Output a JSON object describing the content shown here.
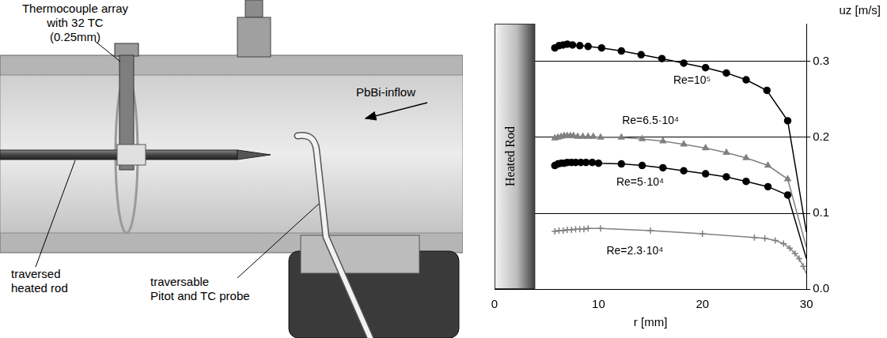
{
  "diagram": {
    "labels": {
      "thermocouple_array": [
        "Thermocouple array",
        "with 32 TC",
        "(0.25mm)"
      ],
      "inflow": "PbBi-inflow",
      "heated_rod": [
        "traversed",
        "heated rod"
      ],
      "probe": [
        "traversable",
        "Pitot and TC probe"
      ]
    }
  },
  "chart_data": {
    "type": "line",
    "x_label": "r [mm]",
    "y_label": "uz [m/s]",
    "xlim": [
      0,
      30
    ],
    "xticks": [
      0,
      10,
      20,
      30
    ],
    "ylim": [
      0,
      0.35
    ],
    "yticks": [
      {
        "value": 0,
        "label": "0.0"
      },
      0.1,
      0.2,
      0.3
    ],
    "grid": true,
    "heated_rod": {
      "label": "Heated Rod",
      "r": [
        0,
        3.9
      ]
    },
    "series": [
      {
        "name": "Re=10⁵",
        "color": "#000000",
        "marker": "circle",
        "line_style": "solid",
        "x": [
          5.8,
          6.2,
          6.6,
          7.0,
          7.5,
          8.2,
          9.0,
          10.3,
          12.2,
          14.1,
          16.1,
          18.2,
          20.3,
          22.3,
          24.2,
          26.2,
          28.2,
          30
        ],
        "values": [
          0.318,
          0.321,
          0.322,
          0.323,
          0.322,
          0.321,
          0.32,
          0.318,
          0.314,
          0.309,
          0.304,
          0.298,
          0.292,
          0.285,
          0.276,
          0.262,
          0.222,
          0.075
        ],
        "label_x": 19,
        "label_y": 0.275
      },
      {
        "name": "Re=6.5·10⁴",
        "color": "#808080",
        "marker": "triangle",
        "line_style": "solid",
        "x": [
          5.8,
          6.1,
          6.4,
          6.7,
          7.0,
          7.3,
          7.6,
          8.0,
          8.5,
          9.0,
          9.5,
          10.2,
          12.2,
          14.2,
          16.2,
          18.2,
          20.3,
          22.3,
          24.2,
          26.3,
          28.2,
          30
        ],
        "values": [
          0.199,
          0.2,
          0.201,
          0.202,
          0.202,
          0.202,
          0.202,
          0.201,
          0.201,
          0.201,
          0.201,
          0.2,
          0.2,
          0.198,
          0.195,
          0.191,
          0.186,
          0.18,
          0.173,
          0.163,
          0.145,
          0.055
        ],
        "label_x": 15,
        "label_y": 0.222
      },
      {
        "name": "Re=5·10⁴",
        "color": "#000000",
        "marker": "circle",
        "line_style": "solid",
        "x": [
          5.8,
          6.1,
          6.4,
          6.7,
          7.0,
          7.4,
          7.8,
          8.3,
          8.8,
          9.4,
          10.0,
          12.2,
          14.2,
          16.2,
          18.2,
          20.3,
          22.3,
          24.2,
          26.3,
          28.2,
          30
        ],
        "values": [
          0.163,
          0.165,
          0.166,
          0.166,
          0.167,
          0.167,
          0.167,
          0.167,
          0.167,
          0.167,
          0.166,
          0.165,
          0.163,
          0.16,
          0.156,
          0.152,
          0.148,
          0.142,
          0.135,
          0.124,
          0.04
        ],
        "label_x": 14,
        "label_y": 0.14
      },
      {
        "name": "Re=2.3·10⁴",
        "color": "#808080",
        "marker": "plus",
        "line_style": "solid",
        "x": [
          5.8,
          6.2,
          6.6,
          7.0,
          7.4,
          7.8,
          8.2,
          8.6,
          9.0,
          10.2,
          15.0,
          20.0,
          25.0,
          26.0,
          27.0,
          27.8,
          28.4,
          28.9,
          29.3,
          29.7,
          30
        ],
        "values": [
          0.076,
          0.077,
          0.077,
          0.078,
          0.078,
          0.079,
          0.079,
          0.079,
          0.08,
          0.08,
          0.077,
          0.073,
          0.068,
          0.067,
          0.064,
          0.06,
          0.054,
          0.047,
          0.04,
          0.03,
          0.02
        ],
        "label_x": 13.5,
        "label_y": 0.05
      }
    ]
  }
}
